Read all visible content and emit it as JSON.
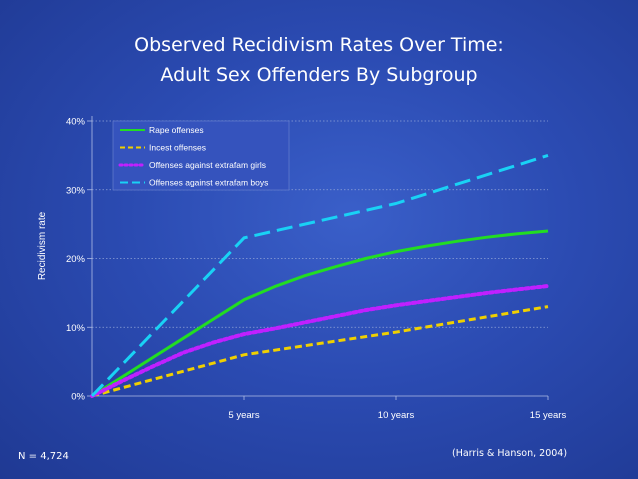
{
  "slide": {
    "title_line1": "Observed Recidivism Rates Over Time:",
    "title_line2": "Adult Sex Offenders By Subgroup",
    "sample_note": "N = 4,724",
    "citation": "(Harris & Hanson, 2004)"
  },
  "chart_data": {
    "type": "line",
    "title": "Observed Recidivism Rates Over Time: Adult Sex Offenders By Subgroup",
    "xlabel": "",
    "ylabel": "Recidivism  rate",
    "x": [
      0,
      5,
      10,
      15
    ],
    "x_tick_labels": [
      "5 years",
      "10 years",
      "15 years"
    ],
    "x_ticks": [
      5,
      10,
      15
    ],
    "xlim": [
      0,
      15
    ],
    "ylim": [
      0,
      40
    ],
    "y_ticks": [
      0,
      10,
      20,
      30,
      40
    ],
    "y_tick_labels": [
      "0%",
      "10%",
      "20%",
      "30%",
      "40%"
    ],
    "grid": true,
    "legend_position": "top-left",
    "series": [
      {
        "name": "Rape offenses",
        "color": "#22dd22",
        "style": "solid",
        "points": [
          [
            0,
            0
          ],
          [
            1,
            2.8
          ],
          [
            2,
            5.6
          ],
          [
            3,
            8.4
          ],
          [
            4,
            11.2
          ],
          [
            5,
            14
          ],
          [
            6,
            15.9
          ],
          [
            7,
            17.5
          ],
          [
            8,
            18.8
          ],
          [
            9,
            20
          ],
          [
            10,
            21
          ],
          [
            11,
            21.8
          ],
          [
            12,
            22.5
          ],
          [
            13,
            23.1
          ],
          [
            14,
            23.6
          ],
          [
            15,
            24
          ]
        ]
      },
      {
        "name": "Incest offenses",
        "color": "#f0d000",
        "style": "dashed",
        "points": [
          [
            0,
            0
          ],
          [
            5,
            6
          ],
          [
            10,
            9.3
          ],
          [
            15,
            13
          ]
        ]
      },
      {
        "name": "Offenses against extrafam girls",
        "color": "#c020ff",
        "style": "dotted",
        "points": [
          [
            0,
            0
          ],
          [
            1,
            2.2
          ],
          [
            2,
            4.3
          ],
          [
            3,
            6.3
          ],
          [
            4,
            7.8
          ],
          [
            5,
            9
          ],
          [
            6,
            9.8
          ],
          [
            7,
            10.7
          ],
          [
            8,
            11.6
          ],
          [
            9,
            12.5
          ],
          [
            10,
            13.2
          ],
          [
            11,
            13.8
          ],
          [
            12,
            14.4
          ],
          [
            13,
            15
          ],
          [
            14,
            15.5
          ],
          [
            15,
            16
          ]
        ]
      },
      {
        "name": "Offenses against extrafam boys",
        "color": "#19d2f5",
        "style": "longdash",
        "points": [
          [
            0,
            0
          ],
          [
            5,
            23
          ],
          [
            10,
            28
          ],
          [
            15,
            35
          ]
        ]
      }
    ]
  }
}
